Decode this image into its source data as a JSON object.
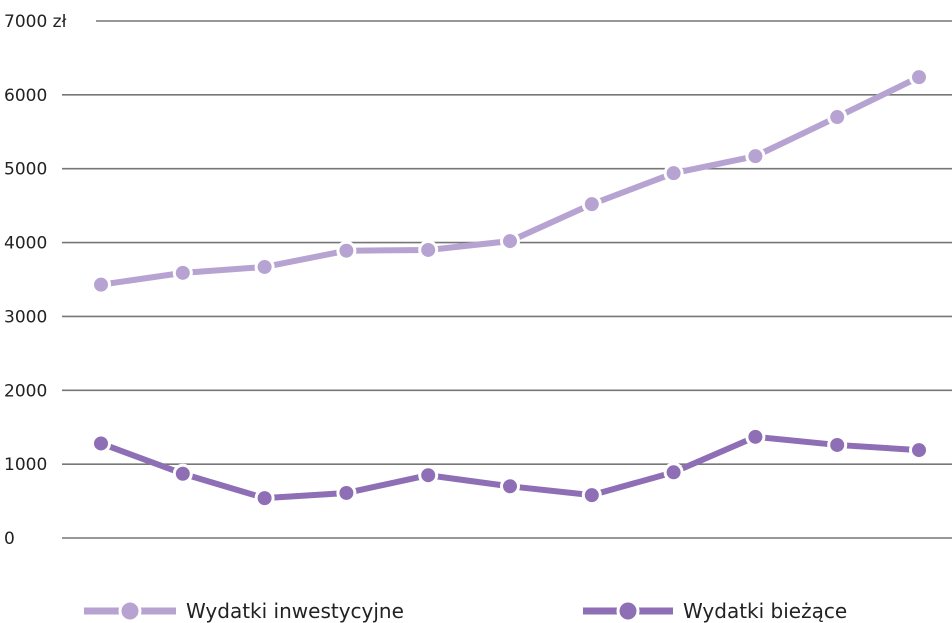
{
  "chart_data": {
    "type": "line",
    "title": "",
    "xlabel": "",
    "ylabel": "",
    "x": [
      1,
      2,
      3,
      4,
      5,
      6,
      7,
      8,
      9,
      10,
      11
    ],
    "ylim": [
      0,
      7000
    ],
    "yticks": [
      {
        "value": 0,
        "label": "0"
      },
      {
        "value": 1000,
        "label": "1000"
      },
      {
        "value": 2000,
        "label": "2000"
      },
      {
        "value": 3000,
        "label": "3000"
      },
      {
        "value": 4000,
        "label": "4000"
      },
      {
        "value": 5000,
        "label": "5000"
      },
      {
        "value": 6000,
        "label": "6000"
      },
      {
        "value": 7000,
        "label": "7000 zł"
      }
    ],
    "grid": true,
    "legend_position": "bottom",
    "series": [
      {
        "name": "Wydatki inwestycyjne",
        "color": "#b6a3d2",
        "values": [
          3430,
          3590,
          3670,
          3890,
          3900,
          4020,
          4520,
          4940,
          5170,
          5700,
          6240
        ]
      },
      {
        "name": "Wydatki bieżące",
        "color": "#8e6eb5",
        "values": [
          1280,
          870,
          540,
          610,
          850,
          700,
          580,
          890,
          1370,
          1260,
          1190
        ]
      }
    ]
  }
}
